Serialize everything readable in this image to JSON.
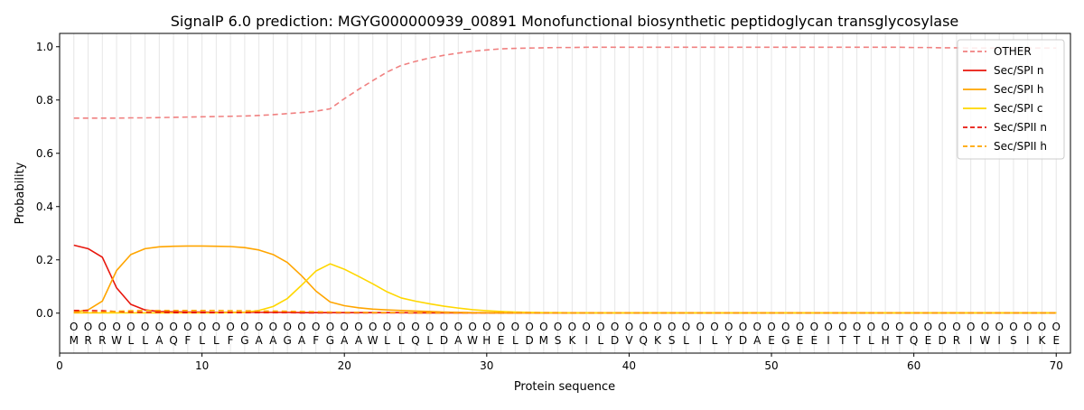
{
  "chart_data": {
    "type": "line",
    "title": "SignalP 6.0 prediction: MGYG000000939_00891 Monofunctional biosynthetic peptidoglycan transglycosylase",
    "xlabel": "Protein sequence",
    "ylabel": "Probability",
    "xlim": [
      0,
      71
    ],
    "ylim": [
      -0.15,
      1.05
    ],
    "x_ticks": [
      "0",
      "10",
      "20",
      "30",
      "40",
      "50",
      "60",
      "70"
    ],
    "y_ticks": [
      "0.0",
      "0.2",
      "0.4",
      "0.6",
      "0.8",
      "1.0"
    ],
    "grid": "vertical lines at each residue",
    "legend_position": "top-right",
    "sequence": [
      "M",
      "R",
      "R",
      "W",
      "L",
      "L",
      "A",
      "Q",
      "F",
      "L",
      "L",
      "F",
      "G",
      "A",
      "A",
      "G",
      "A",
      "F",
      "G",
      "A",
      "A",
      "W",
      "L",
      "L",
      "Q",
      "L",
      "D",
      "A",
      "W",
      "H",
      "E",
      "L",
      "D",
      "M",
      "S",
      "K",
      "I",
      "L",
      "D",
      "V",
      "Q",
      "K",
      "S",
      "L",
      "I",
      "L",
      "Y",
      "D",
      "A",
      "E",
      "G",
      "E",
      "E",
      "I",
      "T",
      "T",
      "L",
      "H",
      "T",
      "Q",
      "E",
      "D",
      "R",
      "I",
      "W",
      "I",
      "S",
      "I",
      "K",
      "E"
    ],
    "region_marker": "O",
    "series": [
      {
        "name": "OTHER",
        "color": "#f08080",
        "dash": "dashed",
        "values": [
          0.732,
          0.732,
          0.732,
          0.732,
          0.733,
          0.733,
          0.734,
          0.735,
          0.736,
          0.737,
          0.738,
          0.739,
          0.74,
          0.742,
          0.745,
          0.749,
          0.753,
          0.758,
          0.767,
          0.805,
          0.84,
          0.873,
          0.905,
          0.93,
          0.945,
          0.958,
          0.968,
          0.976,
          0.983,
          0.988,
          0.992,
          0.994,
          0.995,
          0.996,
          0.997,
          0.997,
          0.998,
          0.998,
          0.998,
          0.998,
          0.998,
          0.998,
          0.998,
          0.998,
          0.998,
          0.998,
          0.998,
          0.998,
          0.998,
          0.998,
          0.998,
          0.998,
          0.998,
          0.998,
          0.998,
          0.998,
          0.998,
          0.998,
          0.998,
          0.997,
          0.997,
          0.996,
          0.996,
          0.995,
          0.995,
          0.995,
          0.995,
          0.995,
          0.995,
          0.995
        ]
      },
      {
        "name": "Sec/SPI n",
        "color": "#e8160c",
        "dash": "solid",
        "values": [
          0.255,
          0.242,
          0.21,
          0.095,
          0.033,
          0.012,
          0.006,
          0.005,
          0.004,
          0.004,
          0.003,
          0.003,
          0.003,
          0.003,
          0.003,
          0.003,
          0.002,
          0.002,
          0.002,
          0.002,
          0.002,
          0.002,
          0.002,
          0.002,
          0.001,
          0.001,
          0.001,
          0.001,
          0.001,
          0.001,
          0.001,
          0.001,
          0.001,
          0.001,
          0.001,
          0.001,
          0.001,
          0.001,
          0.001,
          0.001,
          0.001,
          0.001,
          0.001,
          0.001,
          0.001,
          0.001,
          0.001,
          0.001,
          0.001,
          0.001,
          0.001,
          0.001,
          0.001,
          0.001,
          0.001,
          0.001,
          0.001,
          0.001,
          0.001,
          0.001,
          0.001,
          0.001,
          0.001,
          0.001,
          0.001,
          0.001,
          0.001,
          0.001,
          0.001,
          0.001
        ]
      },
      {
        "name": "Sec/SPI h",
        "color": "#ffa500",
        "dash": "solid",
        "values": [
          0.004,
          0.012,
          0.045,
          0.16,
          0.22,
          0.242,
          0.249,
          0.251,
          0.252,
          0.252,
          0.251,
          0.25,
          0.246,
          0.237,
          0.22,
          0.19,
          0.14,
          0.083,
          0.042,
          0.028,
          0.02,
          0.015,
          0.012,
          0.01,
          0.008,
          0.006,
          0.004,
          0.003,
          0.002,
          0.002,
          0.001,
          0.001,
          0.001,
          0.001,
          0.001,
          0.001,
          0.001,
          0.001,
          0.001,
          0.001,
          0.001,
          0.001,
          0.001,
          0.001,
          0.001,
          0.001,
          0.001,
          0.001,
          0.001,
          0.001,
          0.001,
          0.001,
          0.001,
          0.001,
          0.001,
          0.001,
          0.001,
          0.001,
          0.001,
          0.001,
          0.001,
          0.001,
          0.001,
          0.001,
          0.001,
          0.001,
          0.001,
          0.001,
          0.001,
          0.001
        ]
      },
      {
        "name": "Sec/SPI c",
        "color": "#ffd700",
        "dash": "solid",
        "values": [
          0.001,
          0.001,
          0.001,
          0.001,
          0.001,
          0.001,
          0.001,
          0.001,
          0.001,
          0.001,
          0.001,
          0.002,
          0.003,
          0.01,
          0.025,
          0.055,
          0.105,
          0.158,
          0.185,
          0.165,
          0.138,
          0.11,
          0.08,
          0.057,
          0.045,
          0.035,
          0.026,
          0.019,
          0.013,
          0.009,
          0.006,
          0.004,
          0.003,
          0.002,
          0.002,
          0.001,
          0.001,
          0.001,
          0.001,
          0.001,
          0.001,
          0.001,
          0.001,
          0.001,
          0.001,
          0.001,
          0.001,
          0.001,
          0.001,
          0.001,
          0.001,
          0.001,
          0.001,
          0.001,
          0.001,
          0.001,
          0.001,
          0.001,
          0.001,
          0.001,
          0.001,
          0.001,
          0.001,
          0.001,
          0.001,
          0.001,
          0.001,
          0.001,
          0.001,
          0.001
        ]
      },
      {
        "name": "Sec/SPII n",
        "color": "#e8160c",
        "dash": "dashed",
        "values": [
          0.01,
          0.01,
          0.009,
          0.006,
          0.004,
          0.003,
          0.003,
          0.002,
          0.002,
          0.002,
          0.002,
          0.002,
          0.002,
          0.002,
          0.002,
          0.002,
          0.001,
          0.001,
          0.001,
          0.001,
          0.001,
          0.001,
          0.001,
          0.001,
          0.001,
          0.001,
          0.001,
          0.001,
          0.001,
          0.001,
          0.001,
          0.001,
          0.001,
          0.001,
          0.001,
          0.001,
          0.001,
          0.001,
          0.001,
          0.001,
          0.001,
          0.001,
          0.001,
          0.001,
          0.001,
          0.001,
          0.001,
          0.001,
          0.001,
          0.001,
          0.001,
          0.001,
          0.001,
          0.001,
          0.001,
          0.001,
          0.001,
          0.001,
          0.001,
          0.001,
          0.001,
          0.001,
          0.001,
          0.001,
          0.001,
          0.001,
          0.001,
          0.001,
          0.001,
          0.001
        ]
      },
      {
        "name": "Sec/SPII h",
        "color": "#ffa500",
        "dash": "dashed",
        "values": [
          0.002,
          0.003,
          0.004,
          0.007,
          0.009,
          0.01,
          0.01,
          0.01,
          0.01,
          0.01,
          0.01,
          0.009,
          0.009,
          0.008,
          0.008,
          0.007,
          0.006,
          0.005,
          0.004,
          0.003,
          0.003,
          0.002,
          0.002,
          0.002,
          0.001,
          0.001,
          0.001,
          0.001,
          0.001,
          0.001,
          0.001,
          0.001,
          0.001,
          0.001,
          0.001,
          0.001,
          0.001,
          0.001,
          0.001,
          0.001,
          0.001,
          0.001,
          0.001,
          0.001,
          0.001,
          0.001,
          0.001,
          0.001,
          0.001,
          0.001,
          0.001,
          0.001,
          0.001,
          0.001,
          0.001,
          0.001,
          0.001,
          0.001,
          0.001,
          0.001,
          0.001,
          0.001,
          0.001,
          0.001,
          0.001,
          0.001,
          0.001,
          0.001,
          0.001,
          0.001
        ]
      }
    ]
  }
}
